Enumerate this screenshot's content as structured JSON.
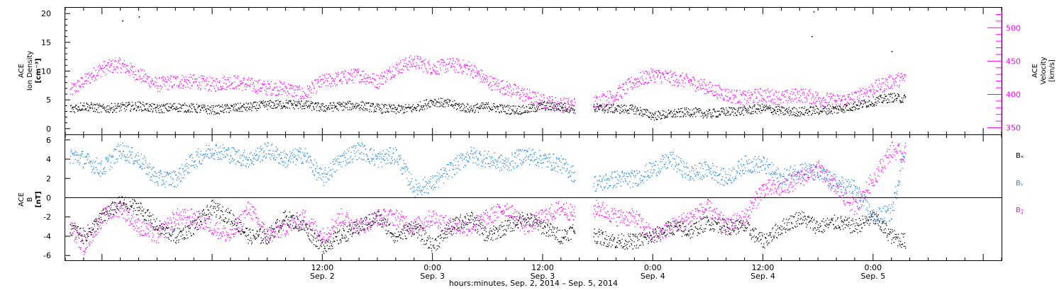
{
  "figure": {
    "xlabel": "hours:minutes, Sep.  2, 2014 – Sep.  5, 2014"
  },
  "colors": {
    "black": "#000000",
    "magenta": "#ff00ff",
    "blue": "#1e88e5",
    "axis": "#000000"
  },
  "chart_data": [
    {
      "type": "scatter",
      "id": "ion-density-velocity",
      "x_range_hours": [
        -16,
        86
      ],
      "x_ticks": [
        {
          "hours": 12,
          "time": "12:00",
          "date": "Sep. 2"
        },
        {
          "hours": 24,
          "time": "0:00",
          "date": "Sep. 3"
        },
        {
          "hours": 36,
          "time": "12:00",
          "date": "Sep. 3"
        },
        {
          "hours": 48,
          "time": "0:00",
          "date": "Sep. 4"
        },
        {
          "hours": 60,
          "time": "12:00",
          "date": "Sep. 4"
        },
        {
          "hours": 72,
          "time": "0:00",
          "date": "Sep. 5"
        }
      ],
      "left_axis": {
        "label_line1": "ACE",
        "label_line2": "Ion Density",
        "label_line3": "[cm⁻³]",
        "ylim": [
          -1,
          21
        ],
        "ticks": [
          "0",
          "5",
          "10",
          "15",
          "20"
        ],
        "tick_values": [
          0,
          5,
          10,
          15,
          20
        ]
      },
      "right_axis": {
        "label_line1": "ACE",
        "label_line2": "Velocity",
        "label_line3": "[km/s]",
        "ylim": [
          340,
          530
        ],
        "ticks": [
          "350",
          "400",
          "450",
          "500"
        ],
        "tick_values": [
          350,
          400,
          450,
          500
        ],
        "color": "#ff00ff"
      },
      "series": [
        {
          "axis": "left",
          "color": "#000000",
          "x": [
            -15.5,
            -14,
            -12,
            -10,
            -8,
            -6,
            -4,
            -2,
            0,
            2,
            4,
            6,
            8,
            10,
            12,
            14,
            16,
            18,
            20,
            22,
            24,
            26,
            28,
            30,
            32,
            34,
            36,
            38,
            40,
            42,
            44,
            46,
            48,
            50,
            52,
            54,
            56,
            58,
            60,
            62,
            64,
            66,
            68,
            70,
            72,
            74,
            75.5
          ],
          "y": [
            3.5,
            4,
            3.5,
            3.8,
            4,
            3.5,
            3.8,
            3.6,
            3.3,
            3.6,
            3.8,
            4.2,
            4.3,
            4.2,
            3.7,
            4,
            4.1,
            3.6,
            3.4,
            3.6,
            4.8,
            4.3,
            3.5,
            3.9,
            3.4,
            3.3,
            4,
            3.8,
            3.4,
            3.6,
            3.5,
            3.4,
            2.3,
            2.6,
            3,
            2.6,
            3,
            3.2,
            3.6,
            3.1,
            3,
            3.3,
            3.4,
            4,
            4.8,
            5.5,
            5.2
          ]
        },
        {
          "axis": "right",
          "color": "#ff00ff",
          "x": [
            -15.5,
            -14,
            -12,
            -10,
            -8,
            -6,
            -4,
            -2,
            0,
            2,
            4,
            6,
            8,
            10,
            12,
            14,
            16,
            18,
            20,
            22,
            24,
            26,
            28,
            30,
            32,
            34,
            36,
            38,
            40,
            42,
            44,
            46,
            48,
            50,
            52,
            54,
            56,
            58,
            60,
            62,
            64,
            66,
            68,
            70,
            72,
            74,
            75.5
          ],
          "y": [
            405,
            420,
            440,
            445,
            430,
            415,
            420,
            420,
            415,
            420,
            415,
            410,
            410,
            400,
            420,
            425,
            430,
            420,
            440,
            450,
            440,
            445,
            440,
            420,
            410,
            400,
            390,
            385,
            385,
            390,
            400,
            420,
            430,
            425,
            420,
            410,
            400,
            395,
            400,
            395,
            400,
            395,
            390,
            395,
            410,
            420,
            425
          ]
        }
      ],
      "outliers": [
        {
          "axis": "left",
          "x": -9.8,
          "y": 18.8
        },
        {
          "axis": "left",
          "x": -8.0,
          "y": 19.5
        },
        {
          "axis": "left",
          "x": 65.5,
          "y": 20.4
        },
        {
          "axis": "left",
          "x": 65.3,
          "y": 16.1
        },
        {
          "axis": "left",
          "x": 74.0,
          "y": 13.5
        }
      ],
      "gaps_hours": [
        [
          39.5,
          41.5
        ]
      ]
    },
    {
      "type": "scatter",
      "id": "magnetic-field",
      "x_range_hours": [
        -16,
        86
      ],
      "x_ticks": [
        {
          "hours": 12,
          "time": "12:00",
          "date": "Sep. 2"
        },
        {
          "hours": 24,
          "time": "0:00",
          "date": "Sep. 3"
        },
        {
          "hours": 36,
          "time": "12:00",
          "date": "Sep. 3"
        },
        {
          "hours": 48,
          "time": "0:00",
          "date": "Sep. 4"
        },
        {
          "hours": 60,
          "time": "12:00",
          "date": "Sep. 4"
        },
        {
          "hours": 72,
          "time": "0:00",
          "date": "Sep. 5"
        }
      ],
      "left_axis": {
        "label_line1": "ACE",
        "label_line2": "B",
        "label_line3": "[nT]",
        "ylim": [
          -6.5,
          6.5
        ],
        "ticks": [
          "-6",
          "-4",
          "-2",
          "0",
          "2",
          "4",
          "6"
        ],
        "tick_values": [
          -6,
          -4,
          -2,
          0,
          2,
          4,
          6
        ]
      },
      "zero_line": 0,
      "legend": [
        "Bₓ",
        "Bᵧ",
        "B𝓏"
      ],
      "legend_placement": "right",
      "series": [
        {
          "name": "Bₓ",
          "color": "#000000",
          "x": [
            -15.5,
            -14,
            -12,
            -10,
            -8,
            -6,
            -4,
            -2,
            0,
            2,
            4,
            6,
            8,
            10,
            12,
            14,
            16,
            18,
            20,
            22,
            24,
            26,
            28,
            30,
            32,
            34,
            36,
            38,
            40,
            42,
            44,
            46,
            48,
            50,
            52,
            54,
            56,
            58,
            60,
            62,
            64,
            66,
            68,
            70,
            72,
            74,
            75.5
          ],
          "y": [
            -3,
            -4,
            -2,
            -0.5,
            -1,
            -3,
            -4,
            -3,
            -1,
            -2,
            -4,
            -4,
            -2,
            -3,
            -5,
            -4,
            -3,
            -2,
            -4,
            -3,
            -5,
            -3,
            -2,
            -4,
            -3,
            -2,
            -3,
            -4,
            -3,
            -4,
            -4.5,
            -4.5,
            -4,
            -3,
            -3.5,
            -2.5,
            -3,
            -3,
            -4.5,
            -3,
            -2,
            -3,
            -2.5,
            -3,
            -2,
            -4,
            -4.5
          ]
        },
        {
          "name": "Bᵧ",
          "color": "#1e88e5",
          "x": [
            -15.5,
            -14,
            -12,
            -10,
            -8,
            -6,
            -4,
            -2,
            0,
            2,
            4,
            6,
            8,
            10,
            12,
            14,
            16,
            18,
            20,
            22,
            24,
            26,
            28,
            30,
            32,
            34,
            36,
            38,
            40,
            42,
            44,
            46,
            48,
            50,
            52,
            54,
            56,
            58,
            60,
            62,
            64,
            66,
            68,
            70,
            72,
            74,
            75.5
          ],
          "y": [
            4.5,
            4,
            3,
            5,
            4,
            2,
            2,
            4,
            5,
            4.5,
            4,
            5,
            4,
            4.5,
            2,
            4,
            5,
            4,
            4.5,
            1,
            1.5,
            3,
            4.5,
            4,
            3.5,
            4.5,
            4,
            3.5,
            2,
            1.5,
            2,
            2,
            3,
            4,
            2.5,
            3,
            2,
            3.5,
            3.5,
            2,
            3,
            2.5,
            1.5,
            1,
            -2,
            -1.5,
            5.5
          ]
        },
        {
          "name": "B𝓏",
          "color": "#ff00ff",
          "x": [
            -15.5,
            -14,
            -12,
            -10,
            -8,
            -6,
            -4,
            -2,
            0,
            2,
            4,
            6,
            8,
            10,
            12,
            14,
            16,
            18,
            20,
            22,
            24,
            26,
            28,
            30,
            32,
            34,
            36,
            38,
            40,
            42,
            44,
            46,
            48,
            50,
            52,
            54,
            56,
            58,
            60,
            62,
            64,
            66,
            68,
            70,
            72,
            74,
            75.5
          ],
          "y": [
            -3,
            -5,
            -2,
            -1,
            -3,
            -4,
            -2,
            -2,
            -3,
            -4,
            -1,
            -4,
            -3,
            -2,
            -4,
            -2,
            -3,
            -2,
            -2,
            -3,
            -2,
            -3,
            -3,
            -2,
            -1,
            -3,
            -2,
            -1,
            -2,
            -1,
            -2,
            -2,
            -4,
            -3,
            -2,
            -1,
            -3,
            -2,
            1,
            1,
            2,
            3,
            1,
            -1,
            2,
            5,
            4.5
          ]
        }
      ],
      "gaps_hours": [
        [
          39.5,
          41.5
        ]
      ]
    }
  ]
}
